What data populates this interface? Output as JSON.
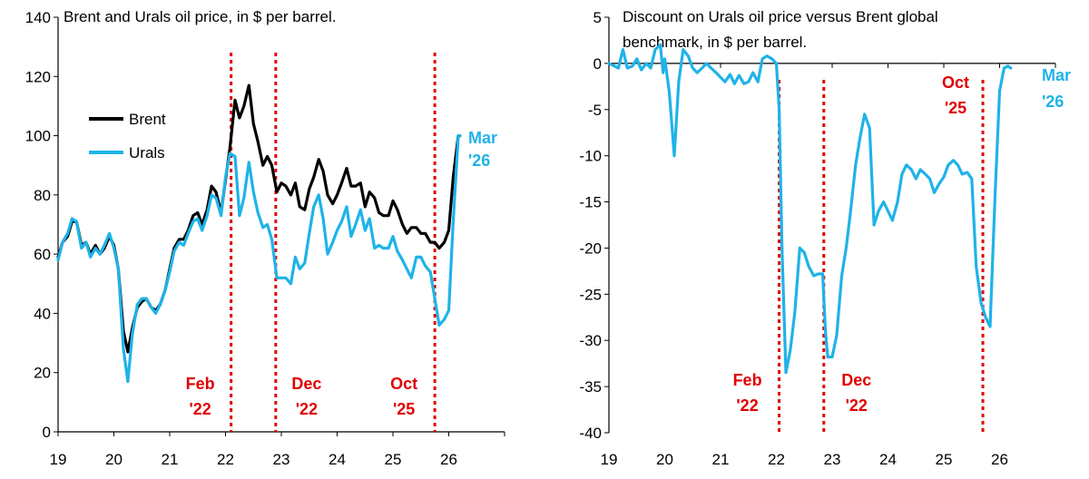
{
  "colors": {
    "brent": "#000000",
    "urals": "#1fb3e8",
    "event": "#e00000",
    "axis": "#000000"
  },
  "chart_data": [
    {
      "type": "line",
      "title": "Brent and Urals oil price, in $ per barrel.",
      "xlim": [
        19,
        27
      ],
      "ylim": [
        0,
        140
      ],
      "yticks": [
        0,
        20,
        40,
        60,
        80,
        100,
        120,
        140
      ],
      "xticks": [
        "19",
        "20",
        "21",
        "22",
        "23",
        "24",
        "25",
        "26"
      ],
      "grid": false,
      "legend": "upper-left",
      "events": [
        {
          "x": 22.1,
          "label1": "Feb",
          "label2": "'22"
        },
        {
          "x": 22.9,
          "label1": "Dec",
          "label2": "'22"
        },
        {
          "x": 25.75,
          "label1": "Oct",
          "label2": "'25"
        }
      ],
      "end_label": {
        "label1": "Mar",
        "label2": "'26"
      },
      "series": [
        {
          "name": "Brent",
          "x": [
            19.0,
            19.08,
            19.17,
            19.25,
            19.33,
            19.42,
            19.5,
            19.58,
            19.67,
            19.75,
            19.83,
            19.92,
            20.0,
            20.08,
            20.17,
            20.25,
            20.33,
            20.42,
            20.5,
            20.58,
            20.67,
            20.75,
            20.83,
            20.92,
            21.0,
            21.08,
            21.17,
            21.25,
            21.33,
            21.42,
            21.5,
            21.58,
            21.67,
            21.75,
            21.83,
            21.92,
            22.0,
            22.08,
            22.17,
            22.25,
            22.33,
            22.42,
            22.5,
            22.58,
            22.67,
            22.75,
            22.83,
            22.92,
            23.0,
            23.08,
            23.17,
            23.25,
            23.33,
            23.42,
            23.5,
            23.58,
            23.67,
            23.75,
            23.83,
            23.92,
            24.0,
            24.08,
            24.17,
            24.25,
            24.33,
            24.42,
            24.5,
            24.58,
            24.67,
            24.75,
            24.83,
            24.92,
            25.0,
            25.08,
            25.17,
            25.25,
            25.33,
            25.42,
            25.5,
            25.58,
            25.67,
            25.75,
            25.83,
            25.92,
            26.0,
            26.08,
            26.17,
            26.2
          ],
          "values": [
            59,
            64,
            66,
            71,
            71,
            63,
            64,
            60,
            63,
            60,
            62,
            66,
            63,
            55,
            34,
            27,
            35,
            42,
            44,
            45,
            42,
            41,
            43,
            48,
            55,
            62,
            65,
            65,
            68,
            73,
            74,
            70,
            75,
            83,
            81,
            74,
            85,
            96,
            112,
            106,
            110,
            117,
            104,
            98,
            90,
            93,
            90,
            81,
            84,
            83,
            80,
            84,
            76,
            75,
            82,
            86,
            92,
            88,
            80,
            77,
            80,
            84,
            89,
            83,
            83,
            84,
            76,
            81,
            79,
            74,
            73,
            73,
            78,
            75,
            70,
            67,
            69,
            69,
            67,
            67,
            64,
            64,
            62,
            64,
            68,
            86,
            100,
            100
          ]
        },
        {
          "name": "Urals",
          "x": [
            19.0,
            19.08,
            19.17,
            19.25,
            19.33,
            19.42,
            19.5,
            19.58,
            19.67,
            19.75,
            19.83,
            19.92,
            20.0,
            20.08,
            20.17,
            20.25,
            20.33,
            20.42,
            20.5,
            20.58,
            20.67,
            20.75,
            20.83,
            20.92,
            21.0,
            21.08,
            21.17,
            21.25,
            21.33,
            21.42,
            21.5,
            21.58,
            21.67,
            21.75,
            21.83,
            21.92,
            22.0,
            22.08,
            22.17,
            22.25,
            22.33,
            22.42,
            22.5,
            22.58,
            22.67,
            22.75,
            22.83,
            22.92,
            23.0,
            23.08,
            23.17,
            23.25,
            23.33,
            23.42,
            23.5,
            23.58,
            23.67,
            23.75,
            23.83,
            23.92,
            24.0,
            24.08,
            24.17,
            24.25,
            24.33,
            24.42,
            24.5,
            24.58,
            24.67,
            24.75,
            24.83,
            24.92,
            25.0,
            25.08,
            25.17,
            25.25,
            25.33,
            25.42,
            25.5,
            25.58,
            25.67,
            25.75,
            25.83,
            25.92,
            26.0,
            26.08,
            26.17,
            26.2
          ],
          "values": [
            58,
            64,
            67,
            72,
            71,
            62,
            64,
            59,
            62,
            60,
            63,
            67,
            62,
            55,
            28,
            17,
            33,
            43,
            45,
            45,
            42,
            40,
            43,
            48,
            54,
            61,
            64,
            63,
            67,
            71,
            72,
            68,
            73,
            80,
            79,
            73,
            86,
            94,
            93,
            73,
            79,
            91,
            81,
            74,
            69,
            70,
            65,
            52,
            52,
            52,
            50,
            59,
            55,
            57,
            67,
            76,
            80,
            72,
            60,
            64,
            68,
            71,
            76,
            66,
            70,
            75,
            68,
            72,
            62,
            63,
            62,
            62,
            66,
            61,
            58,
            55,
            52,
            59,
            59,
            56,
            54,
            45,
            36,
            38,
            41,
            71,
            100,
            100
          ]
        }
      ]
    },
    {
      "type": "line",
      "title": "Discount on Urals oil price versus Brent global",
      "title_line2": "benchmark, in $ per barrel.",
      "xlim": [
        19,
        27
      ],
      "ylim": [
        -40,
        5
      ],
      "yticks": [
        5,
        0,
        -5,
        -10,
        -15,
        -20,
        -25,
        -30,
        -35,
        -40
      ],
      "xticks": [
        "19",
        "20",
        "21",
        "22",
        "23",
        "24",
        "25",
        "26"
      ],
      "grid": false,
      "events": [
        {
          "x": 22.05,
          "label1": "Feb",
          "label2": "'22"
        },
        {
          "x": 22.85,
          "label1": "Dec",
          "label2": "'22"
        },
        {
          "x": 25.7,
          "label1": "Oct",
          "label2": "'25"
        }
      ],
      "end_label": {
        "label1": "Mar",
        "label2": "'26"
      },
      "series": [
        {
          "name": "",
          "x": [
            19.0,
            19.1,
            19.17,
            19.25,
            19.33,
            19.42,
            19.5,
            19.58,
            19.67,
            19.75,
            19.83,
            19.92,
            19.97,
            20.0,
            20.08,
            20.17,
            20.25,
            20.33,
            20.42,
            20.5,
            20.58,
            20.67,
            20.75,
            20.83,
            20.92,
            21.0,
            21.08,
            21.17,
            21.25,
            21.33,
            21.42,
            21.5,
            21.58,
            21.67,
            21.75,
            21.83,
            21.92,
            22.0,
            22.05,
            22.1,
            22.17,
            22.25,
            22.33,
            22.42,
            22.5,
            22.58,
            22.67,
            22.75,
            22.83,
            22.88,
            22.92,
            23.0,
            23.08,
            23.17,
            23.25,
            23.33,
            23.42,
            23.5,
            23.58,
            23.67,
            23.75,
            23.83,
            23.92,
            24.0,
            24.08,
            24.17,
            24.25,
            24.33,
            24.42,
            24.5,
            24.58,
            24.67,
            24.75,
            24.83,
            24.92,
            25.0,
            25.08,
            25.17,
            25.25,
            25.33,
            25.42,
            25.5,
            25.58,
            25.67,
            25.75,
            25.83,
            25.92,
            26.0,
            26.08,
            26.15,
            26.2
          ],
          "values": [
            0,
            -0.3,
            -0.5,
            1.5,
            -0.5,
            -0.3,
            0.5,
            -0.7,
            0,
            -0.5,
            1.5,
            2,
            -1,
            0.5,
            -3,
            -10,
            -2,
            1.5,
            0.8,
            -0.5,
            -1,
            -0.5,
            0,
            -0.5,
            -1,
            -1.5,
            -2,
            -1.2,
            -2.2,
            -1.3,
            -2.2,
            -2,
            -1,
            -2,
            0.5,
            0.8,
            0.5,
            0,
            -5,
            -20,
            -33.5,
            -31,
            -27,
            -20,
            -20.5,
            -22,
            -23,
            -22.8,
            -22.8,
            -29,
            -31.8,
            -31.8,
            -29.5,
            -23,
            -20,
            -16,
            -11,
            -8,
            -5.5,
            -7,
            -17.5,
            -16,
            -15,
            -16,
            -17,
            -15,
            -12,
            -11,
            -11.5,
            -12.5,
            -11.5,
            -12,
            -12.5,
            -14,
            -13,
            -12.3,
            -11,
            -10.5,
            -11,
            -12,
            -11.8,
            -12.5,
            -22,
            -26,
            -27.5,
            -28.5,
            -14,
            -3,
            -0.5,
            -0.3,
            -0.5
          ]
        }
      ]
    }
  ]
}
